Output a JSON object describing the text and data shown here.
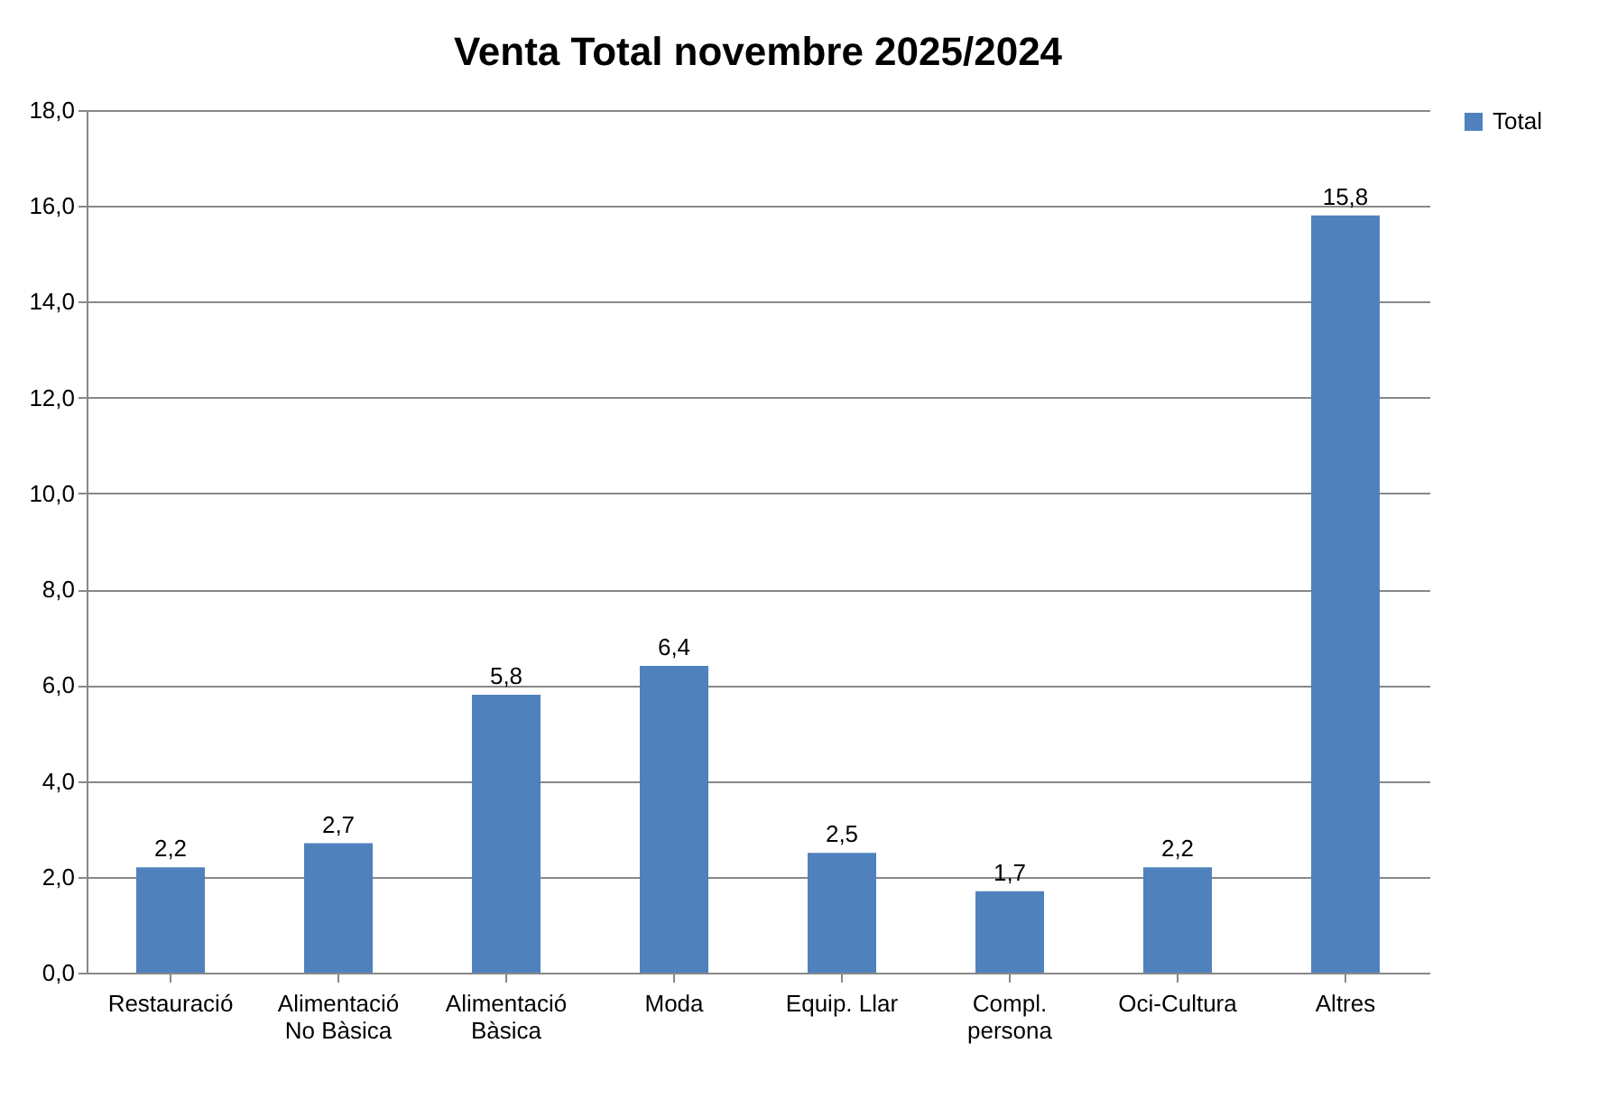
{
  "chart_data": {
    "type": "bar",
    "title": "Venta Total novembre 2025/2024",
    "categories": [
      "Restauració",
      "Alimentació\nNo Bàsica",
      "Alimentació\nBàsica",
      "Moda",
      "Equip. Llar",
      "Compl.\npersona",
      "Oci-Cultura",
      "Altres"
    ],
    "series": [
      {
        "name": "Total",
        "color": "#4f81bd",
        "values": [
          2.2,
          2.7,
          5.8,
          6.4,
          2.5,
          1.7,
          2.2,
          15.8
        ],
        "value_labels": [
          "2,2",
          "2,7",
          "5,8",
          "6,4",
          "2,5",
          "1,7",
          "2,2",
          "15,8"
        ]
      }
    ],
    "ylim": [
      0,
      18
    ],
    "yticks": [
      {
        "value": 0,
        "label": "0,0"
      },
      {
        "value": 2,
        "label": "2,0"
      },
      {
        "value": 4,
        "label": "4,0"
      },
      {
        "value": 6,
        "label": "6,0"
      },
      {
        "value": 8,
        "label": "8,0"
      },
      {
        "value": 10,
        "label": "10,0"
      },
      {
        "value": 12,
        "label": "12,0"
      },
      {
        "value": 14,
        "label": "14,0"
      },
      {
        "value": 16,
        "label": "16,0"
      },
      {
        "value": 18,
        "label": "18,0"
      }
    ],
    "grid": "y",
    "legend": "right"
  }
}
